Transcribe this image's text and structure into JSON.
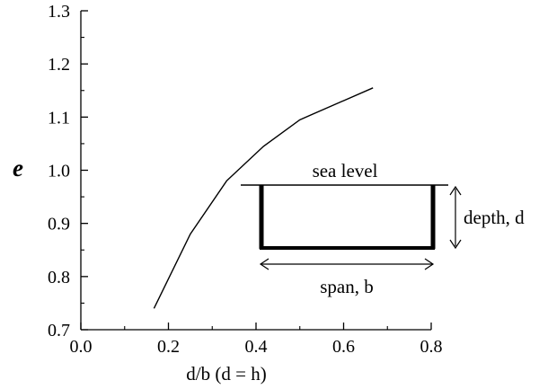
{
  "chart_data": {
    "type": "line",
    "title": "",
    "xlabel": "d/b (d = h)",
    "ylabel": "e",
    "xlim": [
      0.0,
      0.8
    ],
    "ylim": [
      0.7,
      1.3
    ],
    "x_ticks": [
      0.0,
      0.2,
      0.4,
      0.6,
      0.8
    ],
    "x_tick_labels": [
      "0.0",
      "0.2",
      "0.4",
      "0.6",
      "0.8"
    ],
    "y_ticks": [
      0.7,
      0.8,
      0.9,
      1.0,
      1.1,
      1.2,
      1.3
    ],
    "y_tick_labels": [
      "0.7",
      "0.8",
      "0.9",
      "1.0",
      "1.1",
      "1.2",
      "1.3"
    ],
    "grid": false,
    "series": [
      {
        "x": [
          0.167,
          0.25,
          0.333,
          0.417,
          0.5,
          0.667
        ],
        "y": [
          0.74,
          0.88,
          0.98,
          1.045,
          1.095,
          1.155
        ]
      }
    ],
    "annotations": {
      "sea_level": "sea level",
      "depth": "depth, d",
      "span": "span, b"
    }
  }
}
